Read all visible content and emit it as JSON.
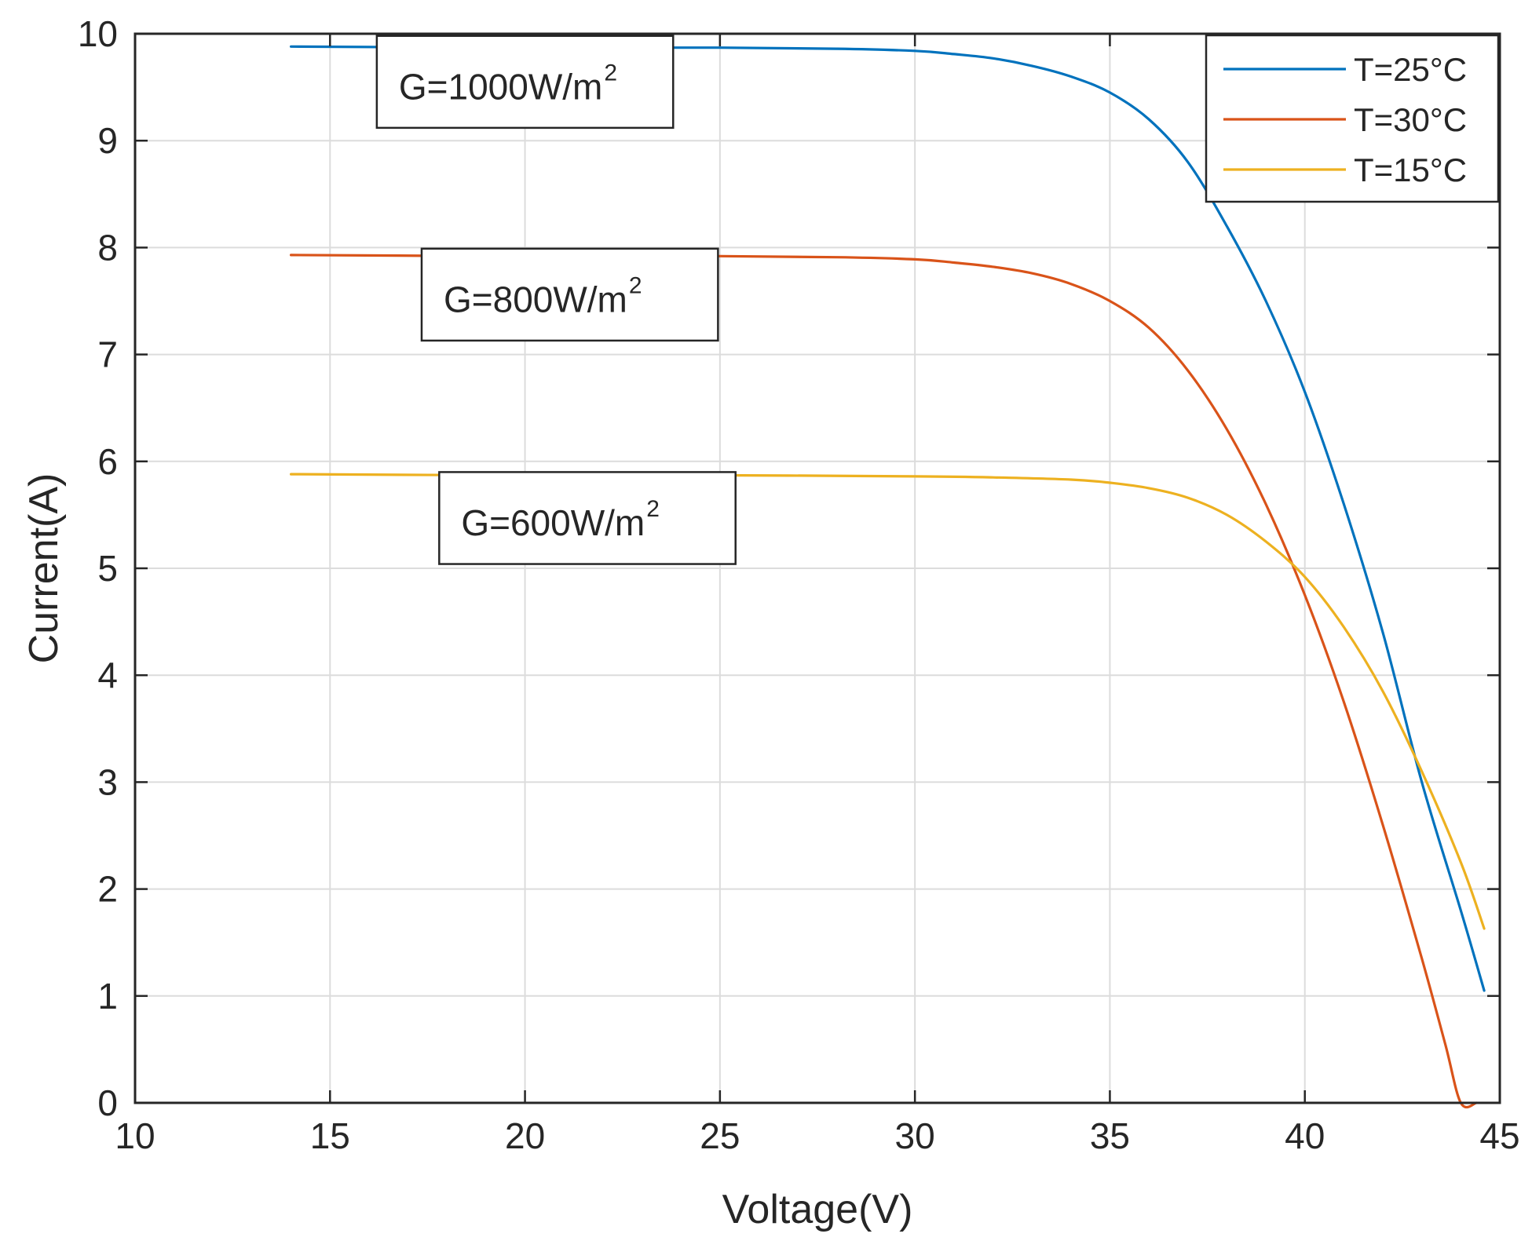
{
  "chart_data": {
    "type": "line",
    "title": "",
    "xlabel": "Voltage(V)",
    "ylabel": "Current(A)",
    "xlim": [
      10,
      45
    ],
    "ylim": [
      0,
      10
    ],
    "xticks": [
      10,
      15,
      20,
      25,
      30,
      35,
      40,
      45
    ],
    "yticks": [
      0,
      1,
      2,
      3,
      4,
      5,
      6,
      7,
      8,
      9,
      10
    ],
    "grid": true,
    "legend_position": "top-right",
    "series": [
      {
        "name": "T=25°C",
        "color": "#0072BD",
        "x": [
          14,
          20,
          25,
          28,
          30,
          31,
          32,
          33,
          34,
          35,
          36,
          37,
          38,
          39,
          40,
          41,
          42,
          43,
          44,
          44.6
        ],
        "y": [
          9.88,
          9.87,
          9.87,
          9.86,
          9.84,
          9.81,
          9.77,
          9.7,
          9.6,
          9.45,
          9.2,
          8.8,
          8.2,
          7.5,
          6.65,
          5.6,
          4.4,
          3.0,
          1.8,
          1.05
        ]
      },
      {
        "name": "T=30°C",
        "color": "#D95319",
        "x": [
          14,
          20,
          25,
          28,
          30,
          31,
          32,
          33,
          34,
          35,
          36,
          37,
          38,
          39,
          40,
          41,
          42,
          43,
          43.6,
          44,
          44.4
        ],
        "y": [
          7.93,
          7.92,
          7.92,
          7.91,
          7.89,
          7.86,
          7.82,
          7.76,
          7.66,
          7.5,
          7.25,
          6.85,
          6.3,
          5.6,
          4.75,
          3.75,
          2.6,
          1.35,
          0.55,
          0.0,
          0.0
        ]
      },
      {
        "name": "T=15°C",
        "color": "#EDB120",
        "x": [
          14,
          20,
          25,
          30,
          32,
          34,
          35,
          36,
          37,
          38,
          39,
          40,
          41,
          42,
          43,
          44,
          44.6
        ],
        "y": [
          5.88,
          5.87,
          5.87,
          5.86,
          5.85,
          5.83,
          5.8,
          5.75,
          5.66,
          5.5,
          5.25,
          4.92,
          4.45,
          3.85,
          3.1,
          2.25,
          1.63
        ]
      }
    ],
    "annotations": [
      {
        "base": "G=1000W/m",
        "sup": "2",
        "box_x": [
          16.2,
          23.8
        ],
        "box_y": [
          9.12,
          9.98
        ]
      },
      {
        "base": "G=800W/m",
        "sup": "2",
        "box_x": [
          17.35,
          24.95
        ],
        "box_y": [
          7.13,
          7.99
        ]
      },
      {
        "base": "G=600W/m",
        "sup": "2",
        "box_x": [
          17.8,
          25.4
        ],
        "box_y": [
          5.04,
          5.9
        ]
      }
    ]
  }
}
